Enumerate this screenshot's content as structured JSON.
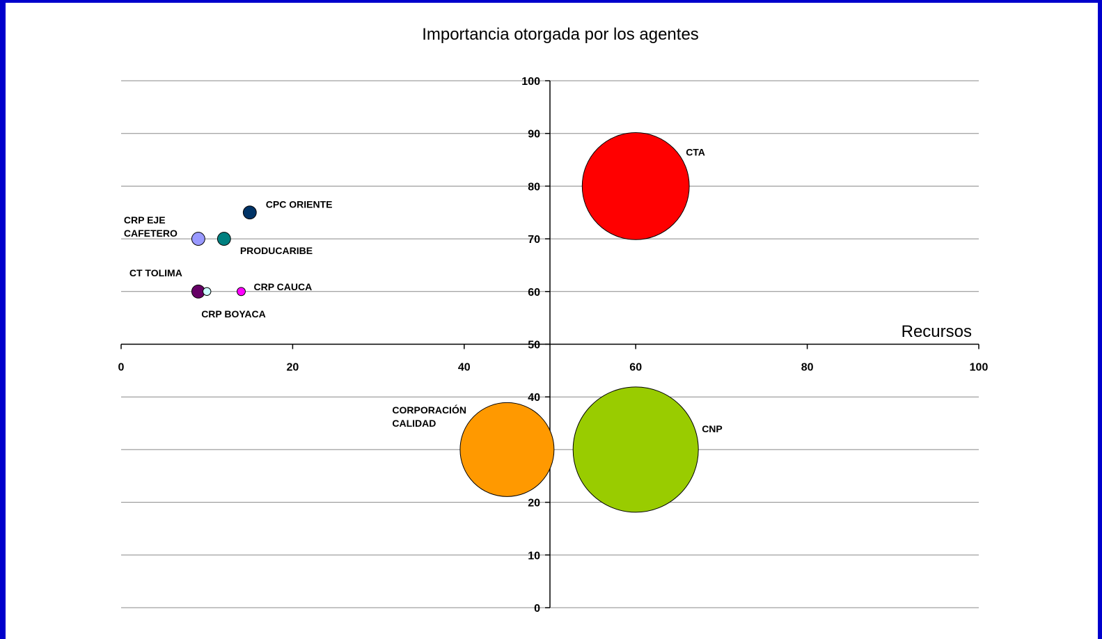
{
  "chart_data": {
    "type": "scatter",
    "bubble": true,
    "title": "Importancia otorgada por los agentes",
    "xlabel": "Recursos",
    "ylabel": "",
    "xlim": [
      0,
      100
    ],
    "ylim": [
      0,
      100
    ],
    "x_ticks": [
      0,
      20,
      40,
      60,
      80,
      100
    ],
    "y_ticks": [
      0,
      10,
      20,
      30,
      40,
      50,
      60,
      70,
      80,
      90,
      100
    ],
    "x_axis_crosses_y_at": 50,
    "y_axis_crosses_x_at": 50,
    "grid": {
      "horizontal": true,
      "vertical": false
    },
    "legend": "none",
    "series": [
      {
        "label_lines": [
          "CTA"
        ],
        "x": 60,
        "y": 80,
        "size": 100,
        "color": "#ff0000"
      },
      {
        "label_lines": [
          "CNP"
        ],
        "x": 60,
        "y": 30,
        "size": 137,
        "color": "#99cc00"
      },
      {
        "label_lines": [
          "CORPORACIÓN",
          "CALIDAD"
        ],
        "x": 45,
        "y": 30,
        "size": 77,
        "color": "#ff9900"
      },
      {
        "label_lines": [
          "CPC ORIENTE"
        ],
        "x": 15,
        "y": 75,
        "size": 1.5,
        "color": "#003366"
      },
      {
        "label_lines": [
          "CRP EJE",
          "CAFETERO"
        ],
        "x": 9,
        "y": 70,
        "size": 1.5,
        "color": "#9999ff"
      },
      {
        "label_lines": [
          "PRODUCARIBE"
        ],
        "x": 12,
        "y": 70,
        "size": 1.5,
        "color": "#008080"
      },
      {
        "label_lines": [
          "CT TOLIMA"
        ],
        "x": 9,
        "y": 60,
        "size": 1.5,
        "color": "#660066"
      },
      {
        "label_lines": [
          "CRP BOYACA"
        ],
        "x": 10,
        "y": 60,
        "size": 0.55,
        "color": "#ccffff"
      },
      {
        "label_lines": [
          "CRP CAUCA"
        ],
        "x": 14,
        "y": 60,
        "size": 0.6,
        "color": "#ff00ff"
      }
    ]
  }
}
